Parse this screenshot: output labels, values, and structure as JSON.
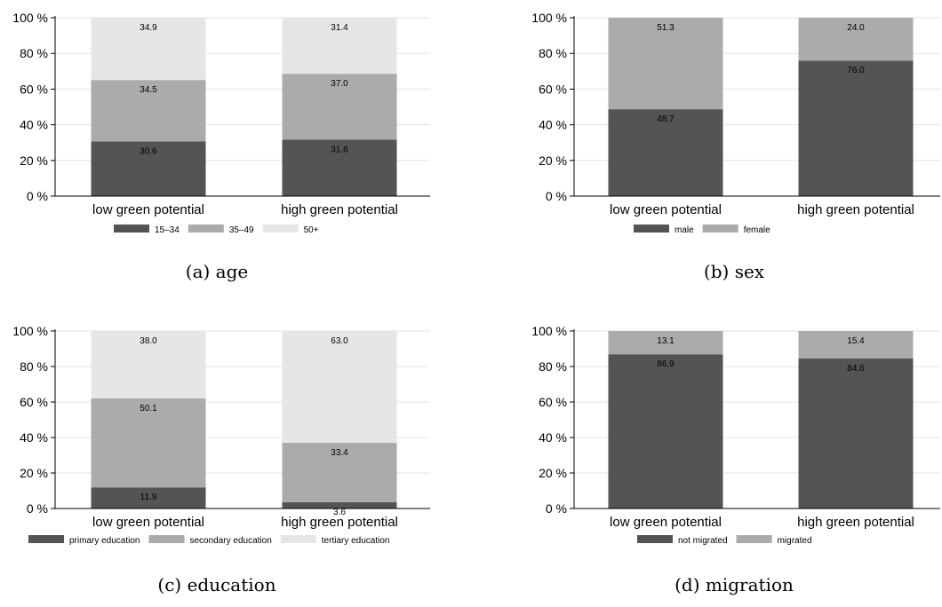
{
  "chart_data": [
    {
      "type": "bar",
      "stacked": true,
      "percent": true,
      "caption": "(a) age",
      "categories": [
        "low green potential",
        "high green potential"
      ],
      "ylim": [
        0,
        100
      ],
      "yticks": [
        "0 %",
        "20 %",
        "40 %",
        "60 %",
        "80 %",
        "100 %"
      ],
      "grid": true,
      "legend": "bottom",
      "series": [
        {
          "name": "15–34",
          "values": [
            30.6,
            31.6
          ],
          "color": "#545454"
        },
        {
          "name": "35–49",
          "values": [
            34.5,
            37.0
          ],
          "color": "#ababab"
        },
        {
          "name": "50+",
          "values": [
            34.9,
            31.4
          ],
          "color": "#e6e6e6"
        }
      ]
    },
    {
      "type": "bar",
      "stacked": true,
      "percent": true,
      "caption": "(b) sex",
      "categories": [
        "low green potential",
        "high green potential"
      ],
      "ylim": [
        0,
        100
      ],
      "yticks": [
        "0 %",
        "20 %",
        "40 %",
        "60 %",
        "80 %",
        "100 %"
      ],
      "grid": true,
      "legend": "bottom",
      "series": [
        {
          "name": "male",
          "values": [
            48.7,
            76.0
          ],
          "color": "#545454"
        },
        {
          "name": "female",
          "values": [
            51.3,
            24.0
          ],
          "color": "#ababab"
        }
      ]
    },
    {
      "type": "bar",
      "stacked": true,
      "percent": true,
      "caption": "(c) education",
      "categories": [
        "low green potential",
        "high green potential"
      ],
      "ylim": [
        0,
        100
      ],
      "yticks": [
        "0 %",
        "20 %",
        "40 %",
        "60 %",
        "80 %",
        "100 %"
      ],
      "grid": true,
      "legend": "bottom",
      "series": [
        {
          "name": "primary education",
          "values": [
            11.9,
            3.6
          ],
          "color": "#545454"
        },
        {
          "name": "secondary education",
          "values": [
            50.1,
            33.4
          ],
          "color": "#ababab"
        },
        {
          "name": "tertiary education",
          "values": [
            38.0,
            63.0
          ],
          "color": "#e6e6e6"
        }
      ]
    },
    {
      "type": "bar",
      "stacked": true,
      "percent": true,
      "caption": "(d) migration",
      "categories": [
        "low green potential",
        "high green potential"
      ],
      "ylim": [
        0,
        100
      ],
      "yticks": [
        "0 %",
        "20 %",
        "40 %",
        "60 %",
        "80 %",
        "100 %"
      ],
      "grid": true,
      "legend": "bottom",
      "series": [
        {
          "name": "not migrated",
          "values": [
            86.9,
            84.6
          ],
          "color": "#545454"
        },
        {
          "name": "migrated",
          "values": [
            13.1,
            15.4
          ],
          "color": "#ababab"
        }
      ]
    }
  ]
}
